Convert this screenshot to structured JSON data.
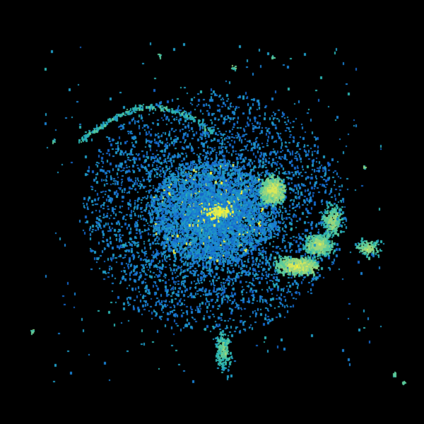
{
  "radar": {
    "background_color": "#000000",
    "palette": [
      "#1565c8",
      "#1a7fd0",
      "#1f9bc4",
      "#2bb3b0",
      "#5ccb9a",
      "#9ad77e",
      "#d9e85a",
      "#f5f23a"
    ],
    "echo_regions": [
      {
        "name": "central-cluster",
        "intensity": "high"
      },
      {
        "name": "east-band-upper",
        "intensity": "moderate"
      },
      {
        "name": "east-band-lower",
        "intensity": "moderate"
      },
      {
        "name": "south-tail",
        "intensity": "low"
      },
      {
        "name": "north-arc",
        "intensity": "low"
      }
    ]
  }
}
